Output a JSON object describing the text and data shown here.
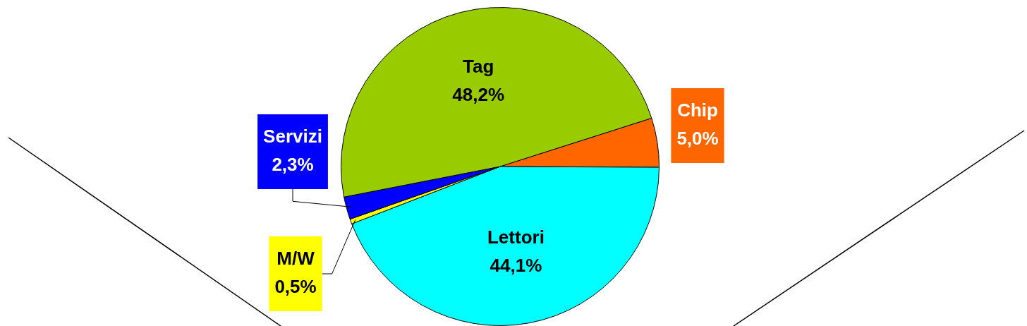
{
  "chart_data": {
    "type": "pie",
    "categories": [
      "Chip",
      "Lettori",
      "M/W",
      "Servizi",
      "Tag"
    ],
    "values": [
      5.0,
      44.1,
      0.5,
      2.3,
      48.2
    ],
    "value_labels": [
      "5,0%",
      "44,1%",
      "0,5%",
      "2,3%",
      "48,2%"
    ],
    "colors": [
      "#ff6600",
      "#00ffff",
      "#ffff00",
      "#0000ff",
      "#99cc00"
    ],
    "legend": false
  }
}
